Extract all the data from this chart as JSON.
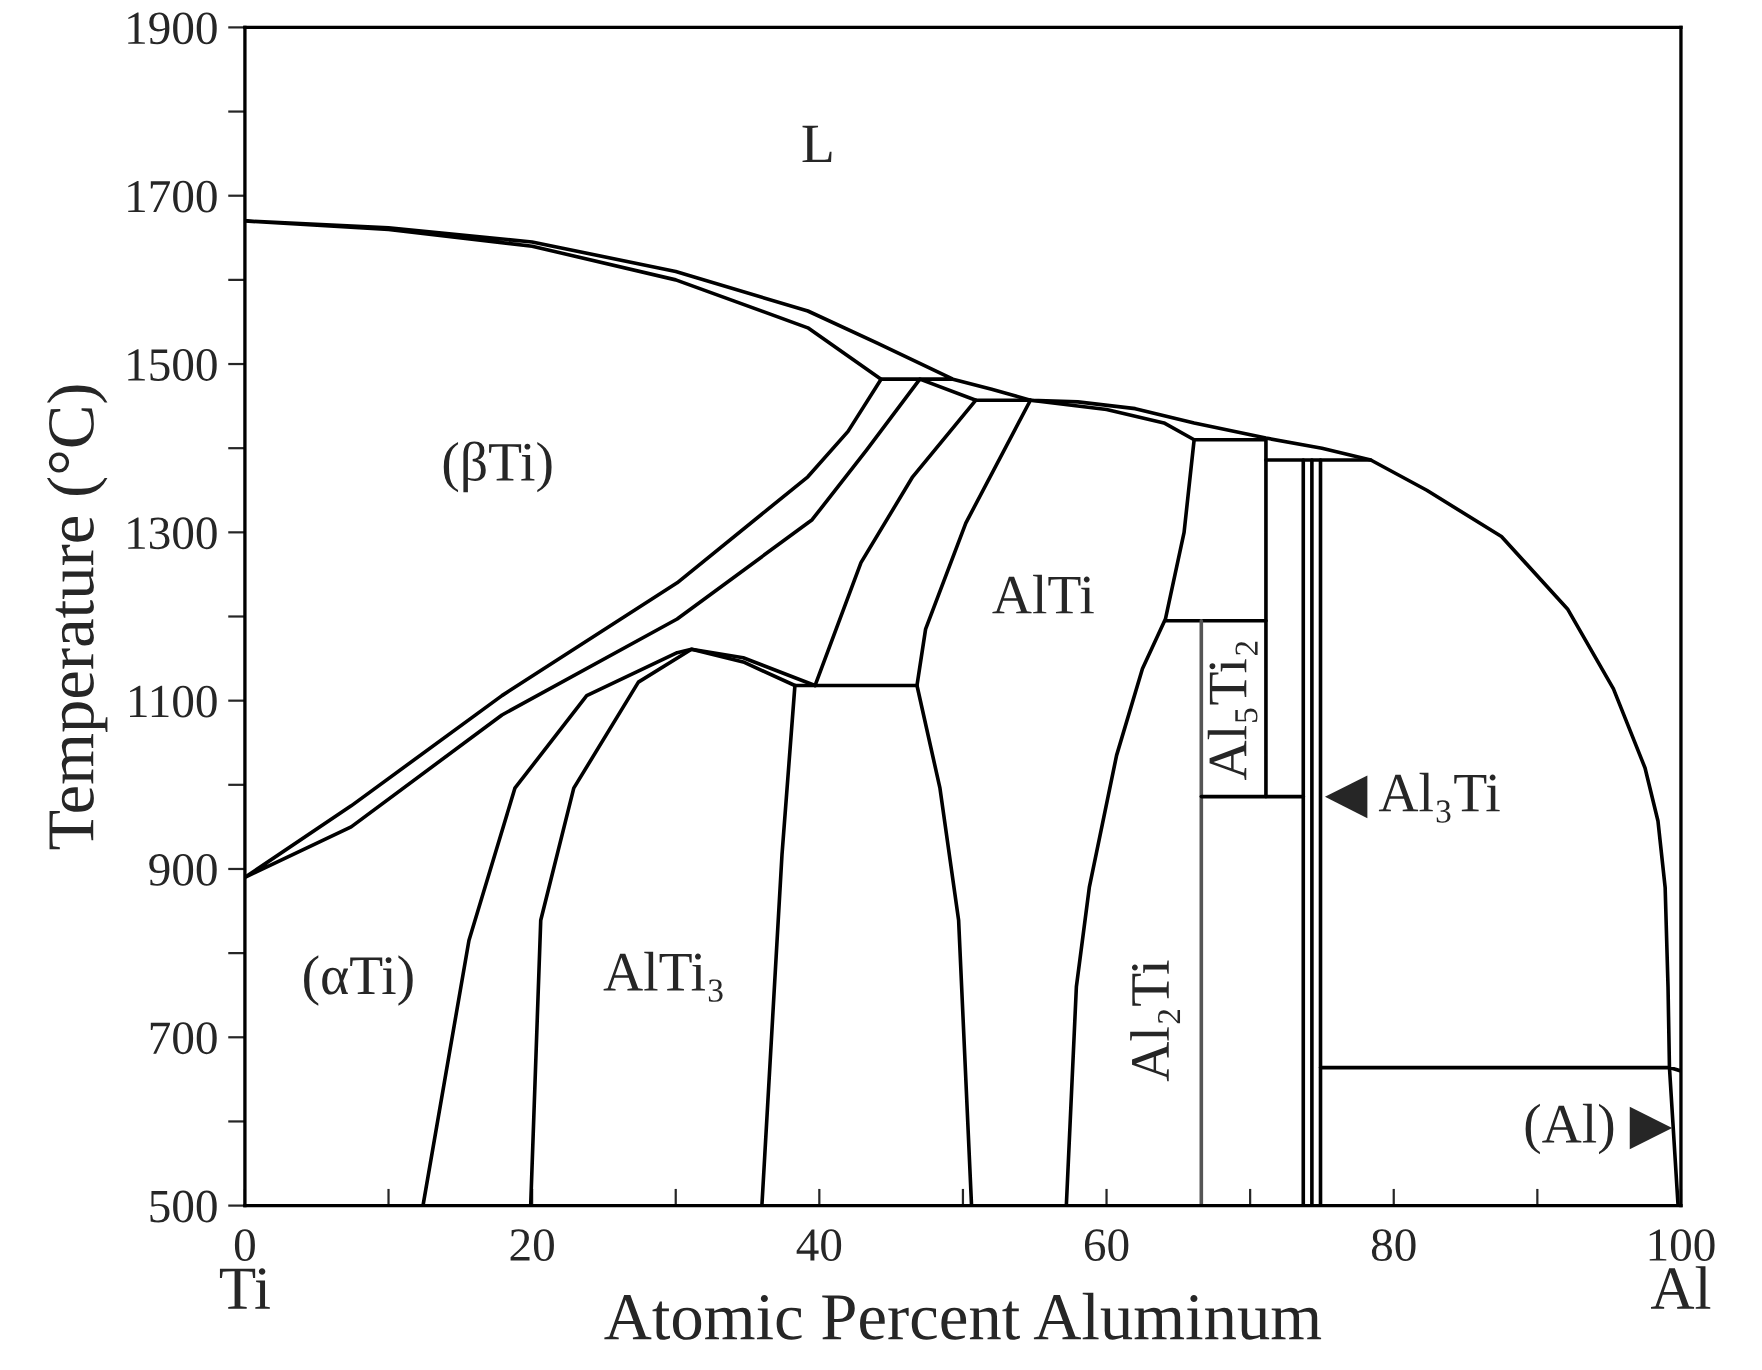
{
  "chart_data": {
    "type": "line",
    "xlabel": "Atomic Percent Aluminum",
    "ylabel": "Temperature (°C)",
    "xlim": [
      0,
      100
    ],
    "ylim": [
      500,
      1900
    ],
    "xticks": [
      0,
      {
        "value": 10,
        "label": null
      },
      20,
      {
        "value": 30,
        "label": null
      },
      40,
      {
        "value": 50,
        "label": null
      },
      60,
      {
        "value": 70,
        "label": null
      },
      80,
      {
        "value": 90,
        "label": null
      },
      100
    ],
    "yticks": [
      500,
      {
        "value": 600,
        "label": null
      },
      700,
      {
        "value": 800,
        "label": null
      },
      900,
      {
        "value": 1000,
        "label": null
      },
      1100,
      {
        "value": 1200,
        "label": null
      },
      1300,
      {
        "value": 1400,
        "label": null
      },
      1500,
      {
        "value": 1600,
        "label": null
      },
      1700,
      {
        "value": 1800,
        "label": null
      },
      1900
    ],
    "series": [
      {
        "color": "#000000",
        "x": [
          100,
          99.2,
          99.1,
          98.9,
          98.4,
          97.5,
          95.3,
          92.1,
          87.5,
          82.3,
          78.4,
          75,
          71.1,
          66.1,
          62,
          58,
          54.7,
          52,
          49.3,
          44,
          39.2,
          30,
          20,
          10,
          0,
          10,
          20,
          30,
          39.2,
          44.3,
          49.3
        ],
        "values": [
          660,
          664,
          760,
          878,
          957,
          1020,
          1114,
          1209,
          1295,
          1350,
          1386,
          1400,
          1412,
          1430,
          1447,
          1455,
          1457,
          1470,
          1482,
          1525,
          1563,
          1610,
          1645,
          1662,
          1670,
          1660,
          1640,
          1600,
          1543,
          1482,
          1482
        ]
      },
      {
        "color": "#000000",
        "x": [
          44.3,
          42,
          39.2,
          30.1,
          17.9,
          7.4,
          0,
          7.4,
          17.9,
          30.1,
          39.5,
          43.3,
          47.0,
          50.9,
          54.7,
          60,
          64,
          66.1
        ],
        "values": [
          1482,
          1420,
          1366,
          1240,
          1106,
          975,
          890,
          950,
          1083,
          1197,
          1315,
          1398,
          1482,
          1457,
          1457,
          1446,
          1430,
          1410
        ]
      },
      {
        "color": "#000000",
        "x": [
          50.9,
          46.5,
          42.9,
          39.7
        ],
        "values": [
          1457,
          1366,
          1264,
          1118
        ]
      },
      {
        "color": "#000000",
        "x": [
          54.7,
          50.2,
          47.4,
          46.8,
          38.3,
          37.4,
          36.0
        ],
        "values": [
          1457,
          1311,
          1185,
          1118,
          1118,
          917,
          500
        ]
      },
      {
        "color": "#000000",
        "x": [
          12.4,
          15.6,
          18.8,
          23.8,
          30.1,
          31.1,
          34.7,
          38.3
        ],
        "values": [
          500,
          815,
          996,
          1106,
          1157,
          1161,
          1146,
          1118
        ]
      },
      {
        "color": "#000000",
        "x": [
          19.9,
          20.6,
          22.9,
          27.4,
          31.1,
          34.7,
          39.7
        ],
        "values": [
          500,
          839,
          996,
          1122,
          1161,
          1151,
          1118
        ]
      },
      {
        "color": "#000000",
        "x": [
          46.8,
          48.4,
          49.7,
          50.6
        ],
        "values": [
          1118,
          996,
          839,
          500
        ]
      },
      {
        "color": "#000000",
        "x": [
          57.2,
          57.9,
          58.8,
          60.7,
          62.5,
          64.1,
          65.4,
          66.1,
          71.1,
          71.1
        ],
        "values": [
          500,
          760,
          878,
          1035,
          1138,
          1197,
          1300,
          1410,
          1410,
          986
        ]
      },
      {
        "color": "#000000",
        "x": [
          64.1,
          71.1
        ],
        "values": [
          1195,
          1195
        ]
      },
      {
        "color": "#555555",
        "x": [
          66.6,
          66.6
        ],
        "values": [
          1195,
          500
        ]
      },
      {
        "color": "#000000",
        "x": [
          66.6,
          73.7
        ],
        "values": [
          986,
          986
        ]
      },
      {
        "color": "#000000",
        "x": [
          71.1,
          78.4
        ],
        "values": [
          1386,
          1386
        ]
      },
      {
        "color": "#000000",
        "x": [
          73.7,
          73.7
        ],
        "values": [
          1386,
          500
        ]
      },
      {
        "color": "#000000",
        "x": [
          74.3,
          74.3
        ],
        "values": [
          1386,
          500
        ]
      },
      {
        "color": "#000000",
        "x": [
          74.9,
          74.9
        ],
        "values": [
          1386,
          500
        ]
      },
      {
        "color": "#000000",
        "x": [
          74.9,
          99.2,
          99.8
        ],
        "values": [
          664,
          664,
          500
        ]
      }
    ],
    "annotations": [
      "L",
      "(βTi)",
      "(αTi)",
      "AlTi₃",
      "Al₂Ti",
      "Al₅Ti₂",
      "AlTi",
      "◀ Al₃Ti",
      "(Al) ▶",
      "Ti",
      "Al"
    ]
  }
}
